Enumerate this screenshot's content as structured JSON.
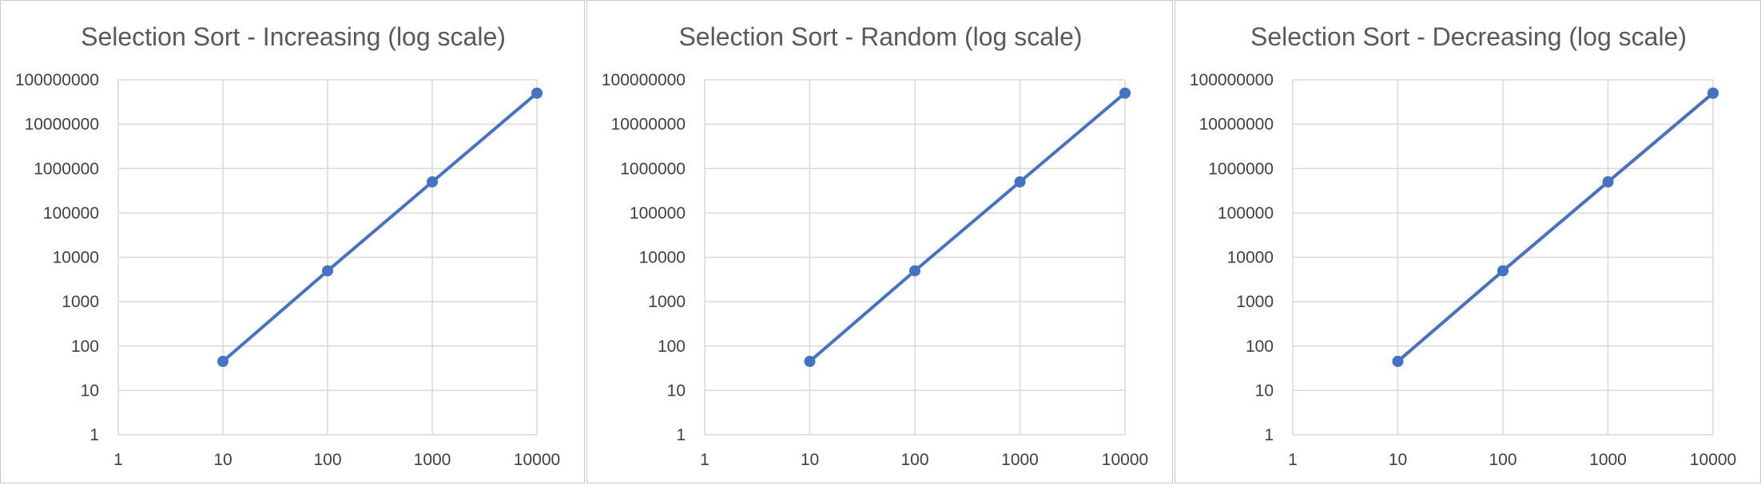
{
  "chart_data": [
    {
      "type": "line",
      "title": "Selection Sort - Increasing (log scale)",
      "xscale": "log",
      "yscale": "log",
      "xlim": [
        1,
        10000
      ],
      "ylim": [
        1,
        100000000
      ],
      "x_ticks": [
        "1",
        "10",
        "100",
        "1000",
        "10000"
      ],
      "y_ticks": [
        "1",
        "10",
        "100",
        "1000",
        "10000",
        "100000",
        "1000000",
        "10000000",
        "100000000"
      ],
      "grid": true,
      "series": [
        {
          "x": [
            10,
            100,
            1000,
            10000
          ],
          "y": [
            45,
            4950,
            499500,
            49995000
          ],
          "color": "#4472C4",
          "marker": "circle"
        }
      ]
    },
    {
      "type": "line",
      "title": "Selection Sort - Random (log scale)",
      "xscale": "log",
      "yscale": "log",
      "xlim": [
        1,
        10000
      ],
      "ylim": [
        1,
        100000000
      ],
      "x_ticks": [
        "1",
        "10",
        "100",
        "1000",
        "10000"
      ],
      "y_ticks": [
        "1",
        "10",
        "100",
        "1000",
        "10000",
        "100000",
        "1000000",
        "10000000",
        "100000000"
      ],
      "grid": true,
      "series": [
        {
          "x": [
            10,
            100,
            1000,
            10000
          ],
          "y": [
            45,
            4950,
            499500,
            49995000
          ],
          "color": "#4472C4",
          "marker": "circle"
        }
      ]
    },
    {
      "type": "line",
      "title": "Selection Sort - Decreasing (log scale)",
      "xscale": "log",
      "yscale": "log",
      "xlim": [
        1,
        10000
      ],
      "ylim": [
        1,
        100000000
      ],
      "x_ticks": [
        "1",
        "10",
        "100",
        "1000",
        "10000"
      ],
      "y_ticks": [
        "1",
        "10",
        "100",
        "1000",
        "10000",
        "100000",
        "1000000",
        "10000000",
        "100000000"
      ],
      "grid": true,
      "series": [
        {
          "x": [
            10,
            100,
            1000,
            10000
          ],
          "y": [
            45,
            4950,
            499500,
            49995000
          ],
          "color": "#ED7D31",
          "marker": "circle"
        },
        {
          "x": [
            10,
            100,
            1000,
            10000
          ],
          "y": [
            45,
            4950,
            499500,
            49995000
          ],
          "color": "#4472C4",
          "marker": "circle"
        }
      ]
    }
  ]
}
